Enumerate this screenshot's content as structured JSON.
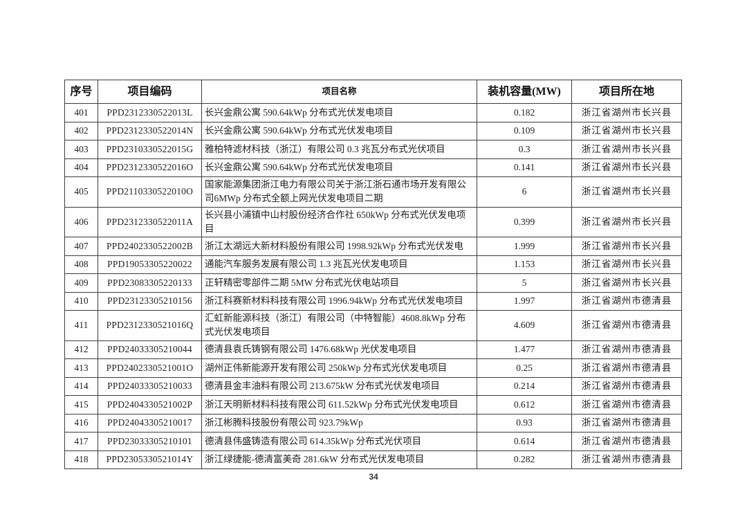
{
  "page": {
    "number": "34"
  },
  "table": {
    "headers": [
      "序号",
      "项目编码",
      "项目名称",
      "装机容量(MW)",
      "项目所在地"
    ],
    "rows": [
      {
        "no": "401",
        "code": "PPD2312330522013L",
        "name": "长兴金鼎公寓 590.64kWp 分布式光伏发电项目",
        "capacity": "0.182",
        "location": "浙江省湖州市长兴县"
      },
      {
        "no": "402",
        "code": "PPD2312330522014N",
        "name": "长兴金鼎公寓 590.64kWp 分布式光伏发电项目",
        "capacity": "0.109",
        "location": "浙江省湖州市长兴县"
      },
      {
        "no": "403",
        "code": "PPD2310330522015G",
        "name": "雅柏特滤材科技（浙江）有限公司 0.3 兆瓦分布式光伏项目",
        "capacity": "0.3",
        "location": "浙江省湖州市长兴县"
      },
      {
        "no": "404",
        "code": "PPD2312330522016O",
        "name": "长兴金鼎公寓 590.64kWp 分布式光伏发电项目",
        "capacity": "0.141",
        "location": "浙江省湖州市长兴县"
      },
      {
        "no": "405",
        "code": "PPD2110330522010O",
        "name": "国家能源集团浙江电力有限公司关于浙江浙石通市场开发有限公司6MWp 分布式全额上网光伏发电项目二期",
        "capacity": "6",
        "location": "浙江省湖州市长兴县"
      },
      {
        "no": "406",
        "code": "PPD2312330522011A",
        "name": "长兴县小浦镇中山村股份经济合作社 650kWp 分布式光伏发电项目",
        "capacity": "0.399",
        "location": "浙江省湖州市长兴县"
      },
      {
        "no": "407",
        "code": "PPD2402330522002B",
        "name": "浙江太湖远大新材料股份有限公司 1998.92kWp 分布式光伏发电",
        "capacity": "1.999",
        "location": "浙江省湖州市长兴县"
      },
      {
        "no": "408",
        "code": "PPD19053305220022",
        "name": "通能汽车服务发展有限公司 1.3 兆瓦光伏发电项目",
        "capacity": "1.153",
        "location": "浙江省湖州市长兴县"
      },
      {
        "no": "409",
        "code": "PPD23083305220133",
        "name": "正轩精密零部件二期 5MW 分布式光伏电站项目",
        "capacity": "5",
        "location": "浙江省湖州市长兴县"
      },
      {
        "no": "410",
        "code": "PPD23123305210156",
        "name": "浙江科赛新材料科技有限公司 1996.94kWp 分布式光伏发电项目",
        "capacity": "1.997",
        "location": "浙江省湖州市德清县"
      },
      {
        "no": "411",
        "code": "PPD2312330521016Q",
        "name": "汇虹新能源科技（浙江）有限公司（中特智能）4608.8kWp 分布式光伏发电项目",
        "capacity": "4.609",
        "location": "浙江省湖州市德清县"
      },
      {
        "no": "412",
        "code": "PPD24033305210044",
        "name": "德清县袁氏铸钢有限公司 1476.68kWp 光伏发电项目",
        "capacity": "1.477",
        "location": "浙江省湖州市德清县"
      },
      {
        "no": "413",
        "code": "PPD2402330521001O",
        "name": "湖州正伟新能源开发有限公司 250kWp 分布式光伏发电项目",
        "capacity": "0.25",
        "location": "浙江省湖州市德清县"
      },
      {
        "no": "414",
        "code": "PPD24033305210033",
        "name": "德清县金丰油料有限公司 213.675kW 分布式光伏发电项目",
        "capacity": "0.214",
        "location": "浙江省湖州市德清县"
      },
      {
        "no": "415",
        "code": "PPD2404330521002P",
        "name": "浙江天明新材料科技有限公司 611.52kWp 分布式光伏发电项目",
        "capacity": "0.612",
        "location": "浙江省湖州市德清县"
      },
      {
        "no": "416",
        "code": "PPD24043305210017",
        "name": "浙江彬腾科技股份有限公司 923.79kWp",
        "capacity": "0.93",
        "location": "浙江省湖州市德清县"
      },
      {
        "no": "417",
        "code": "PPD23033305210101",
        "name": "德清县伟盛铸造有限公司 614.35kWp 分布式光伏项目",
        "capacity": "0.614",
        "location": "浙江省湖州市德清县"
      },
      {
        "no": "418",
        "code": "PPD2305330521014Y",
        "name": "浙江绿捷能-德清富美奇 281.6kW 分布式光伏发电项目",
        "capacity": "0.282",
        "location": "浙江省湖州市德清县"
      }
    ]
  }
}
